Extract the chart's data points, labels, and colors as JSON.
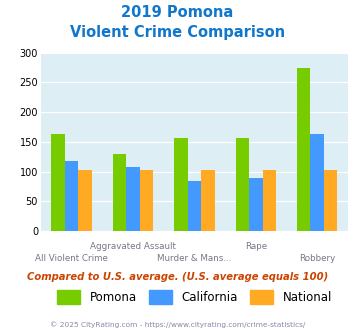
{
  "title_line1": "2019 Pomona",
  "title_line2": "Violent Crime Comparison",
  "pomona": [
    163,
    129,
    157,
    156,
    274
  ],
  "california": [
    118,
    107,
    85,
    89,
    163
  ],
  "national": [
    102,
    102,
    102,
    103,
    102
  ],
  "pomona_color": "#77cc00",
  "california_color": "#4499ff",
  "national_color": "#ffaa22",
  "ylim": [
    0,
    300
  ],
  "yticks": [
    0,
    50,
    100,
    150,
    200,
    250,
    300
  ],
  "bg_color": "#ddeef5",
  "title_color": "#1177cc",
  "note_color": "#cc4400",
  "footer_color": "#8888aa",
  "note": "Compared to U.S. average. (U.S. average equals 100)",
  "footer": "© 2025 CityRating.com - https://www.cityrating.com/crime-statistics/",
  "bar_width": 0.22
}
